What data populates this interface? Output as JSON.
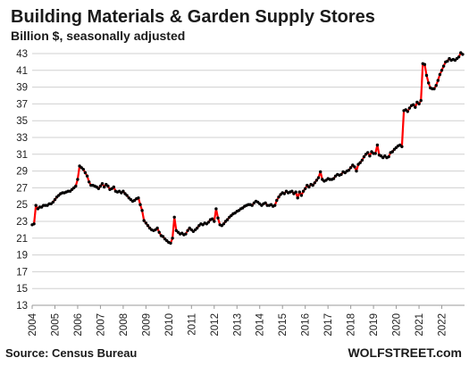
{
  "chart_data": {
    "type": "line",
    "title": "Building Materials & Garden Supply Stores",
    "subtitle": "Billion $, seasonally adjusted",
    "source": "Source: Census Bureau",
    "brand": "WOLFSTREET.com",
    "ylim": [
      13,
      43
    ],
    "yticks": [
      13,
      15,
      17,
      19,
      21,
      23,
      25,
      27,
      29,
      31,
      33,
      35,
      37,
      39,
      41,
      43
    ],
    "xlim": [
      2004,
      2023
    ],
    "xticks": [
      "2004",
      "2005",
      "2006",
      "2007",
      "2008",
      "2009",
      "2010",
      "2011",
      "2012",
      "2013",
      "2014",
      "2015",
      "2016",
      "2017",
      "2018",
      "2019",
      "2020",
      "2021",
      "2022"
    ],
    "grid": true,
    "line_color": "#ff0000",
    "marker_color": "#000000",
    "series": [
      {
        "points": [
          [
            "2004-01",
            22.6
          ],
          [
            "2004-02",
            22.7
          ],
          [
            "2004-03",
            24.9
          ],
          [
            "2004-04",
            24.5
          ],
          [
            "2004-05",
            24.7
          ],
          [
            "2004-06",
            24.7
          ],
          [
            "2004-07",
            24.9
          ],
          [
            "2004-08",
            24.9
          ],
          [
            "2004-09",
            24.9
          ],
          [
            "2004-10",
            25.1
          ],
          [
            "2004-11",
            25.1
          ],
          [
            "2004-12",
            25.3
          ],
          [
            "2005-01",
            25.6
          ],
          [
            "2005-02",
            25.9
          ],
          [
            "2005-03",
            26.1
          ],
          [
            "2005-04",
            26.3
          ],
          [
            "2005-05",
            26.4
          ],
          [
            "2005-06",
            26.4
          ],
          [
            "2005-07",
            26.5
          ],
          [
            "2005-08",
            26.6
          ],
          [
            "2005-09",
            26.6
          ],
          [
            "2005-10",
            26.8
          ],
          [
            "2005-11",
            27.0
          ],
          [
            "2005-12",
            27.2
          ],
          [
            "2006-01",
            28.0
          ],
          [
            "2006-02",
            29.6
          ],
          [
            "2006-03",
            29.4
          ],
          [
            "2006-04",
            29.2
          ],
          [
            "2006-05",
            28.8
          ],
          [
            "2006-06",
            28.4
          ],
          [
            "2006-07",
            27.7
          ],
          [
            "2006-08",
            27.3
          ],
          [
            "2006-09",
            27.3
          ],
          [
            "2006-10",
            27.2
          ],
          [
            "2006-11",
            27.1
          ],
          [
            "2006-12",
            26.9
          ],
          [
            "2007-01",
            27.2
          ],
          [
            "2007-02",
            27.5
          ],
          [
            "2007-03",
            27.1
          ],
          [
            "2007-04",
            27.4
          ],
          [
            "2007-05",
            27.2
          ],
          [
            "2007-06",
            26.8
          ],
          [
            "2007-07",
            26.9
          ],
          [
            "2007-08",
            27.1
          ],
          [
            "2007-09",
            26.6
          ],
          [
            "2007-10",
            26.5
          ],
          [
            "2007-11",
            26.6
          ],
          [
            "2007-12",
            26.4
          ],
          [
            "2008-01",
            26.6
          ],
          [
            "2008-02",
            26.3
          ],
          [
            "2008-03",
            26.1
          ],
          [
            "2008-04",
            25.8
          ],
          [
            "2008-05",
            25.6
          ],
          [
            "2008-06",
            25.4
          ],
          [
            "2008-07",
            25.5
          ],
          [
            "2008-08",
            25.7
          ],
          [
            "2008-09",
            25.8
          ],
          [
            "2008-10",
            25.0
          ],
          [
            "2008-11",
            24.3
          ],
          [
            "2008-12",
            23.1
          ],
          [
            "2009-01",
            22.8
          ],
          [
            "2009-02",
            22.5
          ],
          [
            "2009-03",
            22.2
          ],
          [
            "2009-04",
            22.0
          ],
          [
            "2009-05",
            21.9
          ],
          [
            "2009-06",
            22.0
          ],
          [
            "2009-07",
            22.2
          ],
          [
            "2009-08",
            21.7
          ],
          [
            "2009-09",
            21.3
          ],
          [
            "2009-10",
            21.2
          ],
          [
            "2009-11",
            20.9
          ],
          [
            "2009-12",
            20.7
          ],
          [
            "2010-01",
            20.5
          ],
          [
            "2010-02",
            20.4
          ],
          [
            "2010-03",
            21.0
          ],
          [
            "2010-04",
            23.5
          ],
          [
            "2010-05",
            21.9
          ],
          [
            "2010-06",
            21.7
          ],
          [
            "2010-07",
            21.5
          ],
          [
            "2010-08",
            21.6
          ],
          [
            "2010-09",
            21.4
          ],
          [
            "2010-10",
            21.5
          ],
          [
            "2010-11",
            21.9
          ],
          [
            "2010-12",
            22.2
          ],
          [
            "2011-01",
            22.0
          ],
          [
            "2011-02",
            21.8
          ],
          [
            "2011-03",
            22.0
          ],
          [
            "2011-04",
            22.2
          ],
          [
            "2011-05",
            22.5
          ],
          [
            "2011-06",
            22.7
          ],
          [
            "2011-07",
            22.6
          ],
          [
            "2011-08",
            22.8
          ],
          [
            "2011-09",
            22.7
          ],
          [
            "2011-10",
            22.9
          ],
          [
            "2011-11",
            23.2
          ],
          [
            "2011-12",
            23.3
          ],
          [
            "2012-01",
            23.0
          ],
          [
            "2012-02",
            24.5
          ],
          [
            "2012-03",
            23.4
          ],
          [
            "2012-04",
            22.6
          ],
          [
            "2012-05",
            22.5
          ],
          [
            "2012-06",
            22.7
          ],
          [
            "2012-07",
            23.0
          ],
          [
            "2012-08",
            23.2
          ],
          [
            "2012-09",
            23.5
          ],
          [
            "2012-10",
            23.7
          ],
          [
            "2012-11",
            23.9
          ],
          [
            "2012-12",
            24.0
          ],
          [
            "2013-01",
            24.2
          ],
          [
            "2013-02",
            24.3
          ],
          [
            "2013-03",
            24.5
          ],
          [
            "2013-04",
            24.6
          ],
          [
            "2013-05",
            24.8
          ],
          [
            "2013-06",
            24.9
          ],
          [
            "2013-07",
            25.0
          ],
          [
            "2013-08",
            25.0
          ],
          [
            "2013-09",
            24.9
          ],
          [
            "2013-10",
            25.2
          ],
          [
            "2013-11",
            25.4
          ],
          [
            "2013-12",
            25.3
          ],
          [
            "2014-01",
            25.1
          ],
          [
            "2014-02",
            24.9
          ],
          [
            "2014-03",
            25.1
          ],
          [
            "2014-04",
            25.2
          ],
          [
            "2014-05",
            24.9
          ],
          [
            "2014-06",
            24.9
          ],
          [
            "2014-07",
            25.0
          ],
          [
            "2014-08",
            24.8
          ],
          [
            "2014-09",
            24.9
          ],
          [
            "2014-10",
            25.5
          ],
          [
            "2014-11",
            25.9
          ],
          [
            "2014-12",
            26.2
          ],
          [
            "2015-01",
            26.4
          ],
          [
            "2015-02",
            26.3
          ],
          [
            "2015-03",
            26.6
          ],
          [
            "2015-04",
            26.4
          ],
          [
            "2015-05",
            26.5
          ],
          [
            "2015-06",
            26.6
          ],
          [
            "2015-07",
            26.3
          ],
          [
            "2015-08",
            26.5
          ],
          [
            "2015-09",
            25.8
          ],
          [
            "2015-10",
            26.5
          ],
          [
            "2015-11",
            26.1
          ],
          [
            "2015-12",
            26.6
          ],
          [
            "2016-01",
            26.9
          ],
          [
            "2016-02",
            27.3
          ],
          [
            "2016-03",
            27.1
          ],
          [
            "2016-04",
            27.4
          ],
          [
            "2016-05",
            27.3
          ],
          [
            "2016-06",
            27.6
          ],
          [
            "2016-07",
            27.9
          ],
          [
            "2016-08",
            28.2
          ],
          [
            "2016-09",
            28.9
          ],
          [
            "2016-10",
            28.0
          ],
          [
            "2016-11",
            27.8
          ],
          [
            "2016-12",
            27.9
          ],
          [
            "2017-01",
            28.1
          ],
          [
            "2017-02",
            28.0
          ],
          [
            "2017-03",
            28.0
          ],
          [
            "2017-04",
            28.1
          ],
          [
            "2017-05",
            28.4
          ],
          [
            "2017-06",
            28.6
          ],
          [
            "2017-07",
            28.5
          ],
          [
            "2017-08",
            28.6
          ],
          [
            "2017-09",
            28.9
          ],
          [
            "2017-10",
            28.8
          ],
          [
            "2017-11",
            29.0
          ],
          [
            "2017-12",
            29.1
          ],
          [
            "2018-01",
            29.4
          ],
          [
            "2018-02",
            29.7
          ],
          [
            "2018-03",
            29.5
          ],
          [
            "2018-04",
            29.0
          ],
          [
            "2018-05",
            29.8
          ],
          [
            "2018-06",
            30.0
          ],
          [
            "2018-07",
            30.3
          ],
          [
            "2018-08",
            30.7
          ],
          [
            "2018-09",
            31.0
          ],
          [
            "2018-10",
            31.2
          ],
          [
            "2018-11",
            30.8
          ],
          [
            "2018-12",
            31.3
          ],
          [
            "2019-01",
            31.1
          ],
          [
            "2019-02",
            31.1
          ],
          [
            "2019-03",
            32.1
          ],
          [
            "2019-04",
            30.9
          ],
          [
            "2019-05",
            30.8
          ],
          [
            "2019-06",
            30.6
          ],
          [
            "2019-07",
            30.8
          ],
          [
            "2019-08",
            30.6
          ],
          [
            "2019-09",
            30.7
          ],
          [
            "2019-10",
            31.2
          ],
          [
            "2019-11",
            31.3
          ],
          [
            "2019-12",
            31.6
          ],
          [
            "2020-01",
            31.8
          ],
          [
            "2020-02",
            32.0
          ],
          [
            "2020-03",
            32.1
          ],
          [
            "2020-04",
            31.9
          ],
          [
            "2020-05",
            36.2
          ],
          [
            "2020-06",
            36.3
          ],
          [
            "2020-07",
            36.1
          ],
          [
            "2020-08",
            36.5
          ],
          [
            "2020-09",
            36.8
          ],
          [
            "2020-10",
            36.9
          ],
          [
            "2020-11",
            36.6
          ],
          [
            "2020-12",
            37.2
          ],
          [
            "2021-01",
            37.0
          ],
          [
            "2021-02",
            37.4
          ],
          [
            "2021-03",
            41.8
          ],
          [
            "2021-04",
            41.7
          ],
          [
            "2021-05",
            40.4
          ],
          [
            "2021-06",
            39.5
          ],
          [
            "2021-07",
            38.9
          ],
          [
            "2021-08",
            38.8
          ],
          [
            "2021-09",
            38.8
          ],
          [
            "2021-10",
            39.2
          ],
          [
            "2021-11",
            39.8
          ],
          [
            "2021-12",
            40.5
          ],
          [
            "2022-01",
            41.0
          ],
          [
            "2022-02",
            41.5
          ],
          [
            "2022-03",
            42.0
          ],
          [
            "2022-04",
            42.1
          ],
          [
            "2022-05",
            42.4
          ],
          [
            "2022-06",
            42.2
          ],
          [
            "2022-07",
            42.3
          ],
          [
            "2022-08",
            42.2
          ],
          [
            "2022-09",
            42.4
          ],
          [
            "2022-10",
            42.6
          ],
          [
            "2022-11",
            43.1
          ],
          [
            "2022-12",
            42.9
          ]
        ]
      }
    ]
  }
}
